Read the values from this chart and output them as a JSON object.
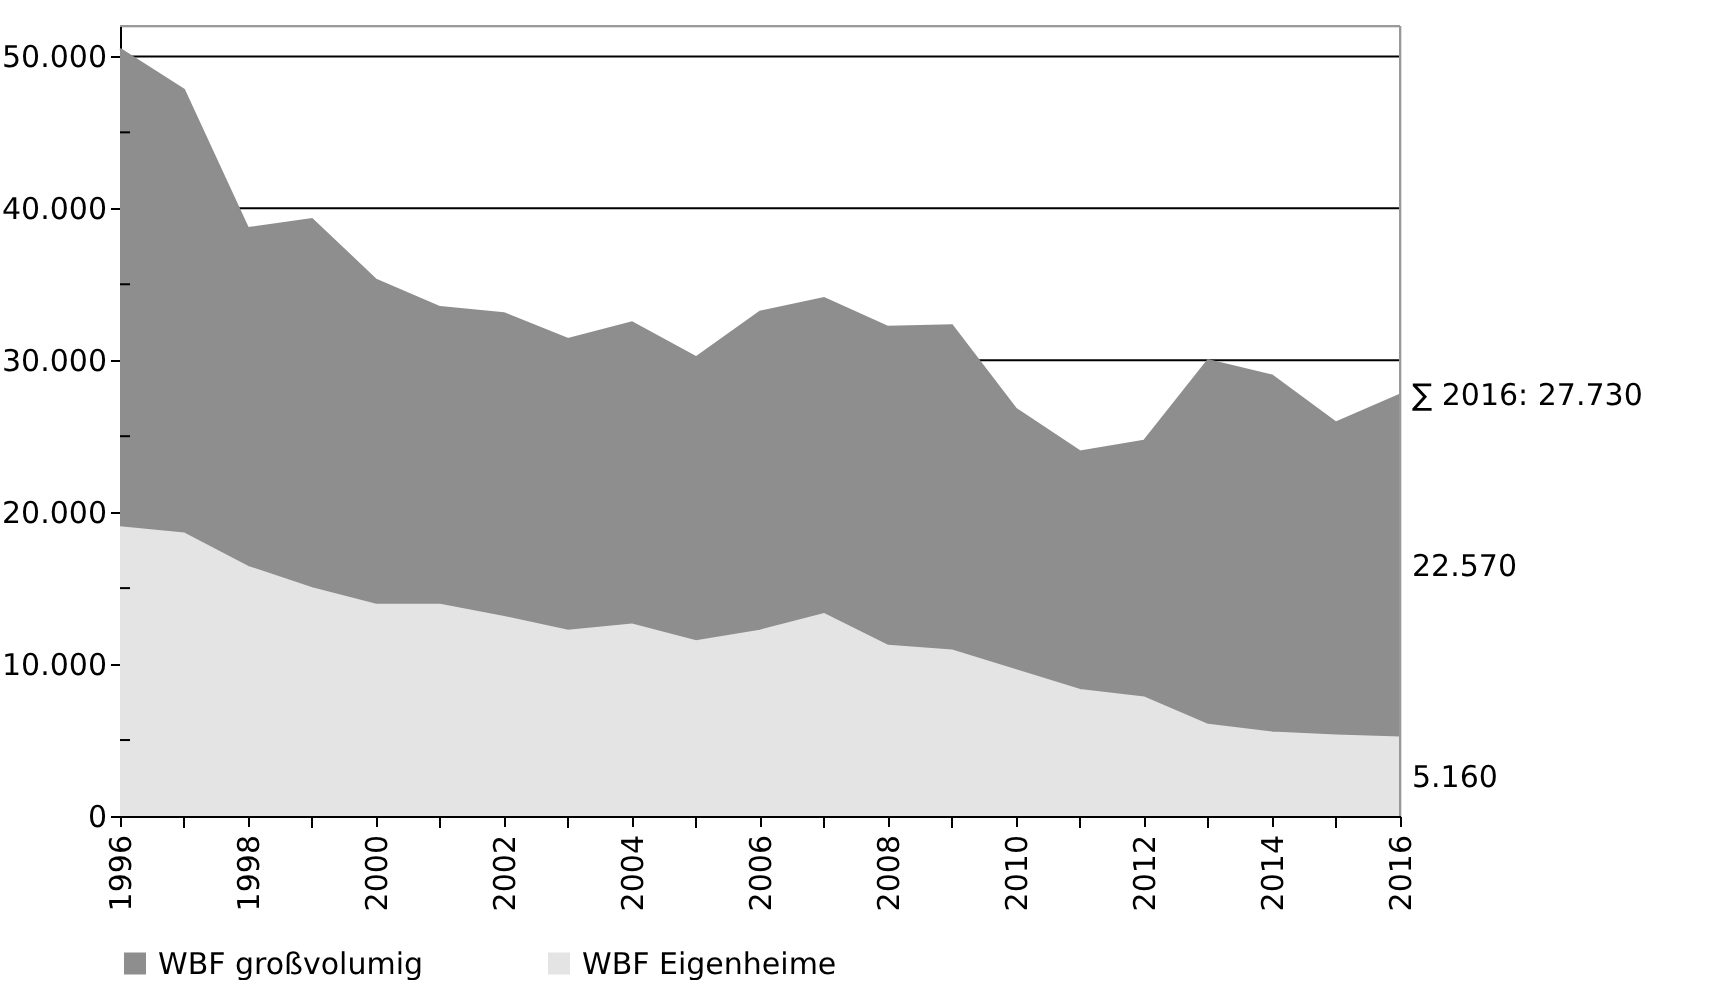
{
  "chart_data": {
    "type": "area",
    "stacked": true,
    "x": [
      1996,
      1997,
      1998,
      1999,
      2000,
      2001,
      2002,
      2003,
      2004,
      2005,
      2006,
      2007,
      2008,
      2009,
      2010,
      2011,
      2012,
      2013,
      2014,
      2015,
      2016
    ],
    "series": [
      {
        "name": "WBF Eigenheime",
        "color": "#e4e4e4",
        "values": [
          19000,
          18600,
          16400,
          15000,
          13900,
          13900,
          13100,
          12200,
          12600,
          11500,
          12200,
          13300,
          11200,
          10900,
          9600,
          8300,
          7800,
          6000,
          5500,
          5300,
          5160
        ]
      },
      {
        "name": "WBF großvolumig",
        "color": "#8e8e8e",
        "values": [
          31500,
          29200,
          22300,
          24300,
          21400,
          19600,
          20000,
          19200,
          19900,
          18700,
          21000,
          20800,
          21000,
          21400,
          17200,
          15700,
          16900,
          24000,
          23500,
          20600,
          22570
        ]
      }
    ],
    "xlim": [
      1996,
      2016
    ],
    "xticks": [
      1996,
      {
        "value": 1997,
        "label": null
      },
      1998,
      {
        "value": 1999,
        "label": null
      },
      2000,
      {
        "value": 2001,
        "label": null
      },
      2002,
      {
        "value": 2003,
        "label": null
      },
      2004,
      {
        "value": 2005,
        "label": null
      },
      2006,
      {
        "value": 2007,
        "label": null
      },
      2008,
      {
        "value": 2009,
        "label": null
      },
      2010,
      {
        "value": 2011,
        "label": null
      },
      2012,
      {
        "value": 2013,
        "label": null
      },
      2014,
      {
        "value": 2015,
        "label": null
      },
      2016
    ],
    "ylim": [
      0,
      52000
    ],
    "yticks": [
      0,
      {
        "value": 5000,
        "label": null
      },
      {
        "value": 10000,
        "label": "10.000"
      },
      {
        "value": 15000,
        "label": null
      },
      {
        "value": 20000,
        "label": "20.000"
      },
      {
        "value": 25000,
        "label": null
      },
      {
        "value": 30000,
        "label": "30.000"
      },
      {
        "value": 35000,
        "label": null
      },
      {
        "value": 40000,
        "label": "40.000"
      },
      {
        "value": 45000,
        "label": null
      },
      {
        "value": 50000,
        "label": "50.000"
      }
    ],
    "grid": "y",
    "legend": "bottom",
    "annotations": [
      "∑ 2016: 27.730",
      "22.570",
      "5.160"
    ]
  }
}
